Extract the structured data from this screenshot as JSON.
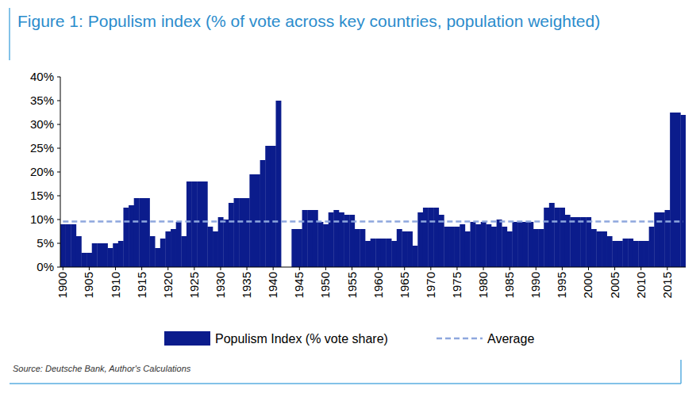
{
  "chart_data": {
    "type": "bar",
    "title": "Figure 1: Populism index (% of vote across key countries, population weighted)",
    "source": "Source: Deutsche Bank, Author's Calculations",
    "categories": [
      "1900",
      null,
      null,
      null,
      null,
      "1905",
      null,
      null,
      null,
      null,
      "1910",
      null,
      null,
      null,
      null,
      "1915",
      null,
      null,
      null,
      null,
      "1920",
      null,
      null,
      null,
      null,
      "1925",
      null,
      null,
      null,
      null,
      "1930",
      null,
      null,
      null,
      null,
      "1935",
      null,
      null,
      null,
      null,
      "1940",
      null,
      null,
      null,
      null,
      "1945",
      null,
      null,
      null,
      null,
      "1950",
      null,
      null,
      null,
      null,
      "1955",
      null,
      null,
      null,
      null,
      "1960",
      null,
      null,
      null,
      null,
      "1965",
      null,
      null,
      null,
      null,
      "1970",
      null,
      null,
      null,
      null,
      "1975",
      null,
      null,
      null,
      null,
      "1980",
      null,
      null,
      null,
      null,
      "1985",
      null,
      null,
      null,
      null,
      "1990",
      null,
      null,
      null,
      null,
      "1995",
      null,
      null,
      null,
      null,
      "2000",
      null,
      null,
      null,
      null,
      "2005",
      null,
      null,
      null,
      null,
      "2010",
      null,
      null,
      null,
      null,
      "2015",
      null,
      null,
      null
    ],
    "series": [
      {
        "name": "Populism Index (% vote share)",
        "color": "#0b1c8c",
        "type": "bar",
        "values": [
          9,
          9,
          9,
          6.5,
          3,
          3,
          5,
          5,
          5,
          4,
          5,
          5.5,
          12.5,
          13,
          14.5,
          14.5,
          14.5,
          6.5,
          4,
          6,
          7.5,
          8,
          9.5,
          6.5,
          18,
          18,
          18,
          18,
          8.5,
          7.5,
          10.5,
          10,
          13.5,
          14.5,
          14.5,
          14.5,
          19.5,
          19.5,
          22.5,
          25.5,
          25.5,
          35,
          null,
          null,
          8,
          8,
          12,
          12,
          12,
          9.5,
          9,
          11.5,
          12,
          11.5,
          11,
          11,
          8,
          8,
          5.5,
          6,
          6,
          6,
          6,
          5.5,
          8,
          7.5,
          7.5,
          4.5,
          11.5,
          12.5,
          12.5,
          12.5,
          11,
          8.5,
          8.5,
          8.5,
          9,
          7.5,
          9.5,
          9,
          9.5,
          9,
          8.5,
          10,
          8.5,
          7.5,
          9.5,
          9.5,
          9.5,
          9.5,
          8,
          8,
          12.5,
          13.5,
          12.5,
          12.5,
          11,
          10.5,
          10.5,
          10.5,
          10.5,
          8,
          7.5,
          7.5,
          6.5,
          5.5,
          5.5,
          6,
          6,
          5.5,
          5.5,
          5.5,
          8.5,
          11.5,
          11.5,
          12,
          32.5,
          32.5,
          32
        ]
      },
      {
        "name": "Average",
        "color": "#8ea7dd",
        "type": "line",
        "line_style": "dashed",
        "values": [
          9.6,
          9.6,
          9.6,
          9.6,
          9.6,
          9.6,
          9.6,
          9.6,
          9.6,
          9.6,
          9.6,
          9.6,
          9.6,
          9.6,
          9.6,
          9.6,
          9.6,
          9.6,
          9.6,
          9.6,
          9.6,
          9.6,
          9.6,
          9.6,
          9.6,
          9.6,
          9.6,
          9.6,
          9.6,
          9.6,
          9.6,
          9.6,
          9.6,
          9.6,
          9.6,
          9.6,
          9.6,
          9.6,
          9.6,
          9.6,
          9.6,
          9.6,
          9.6,
          9.6,
          9.6,
          9.6,
          9.6,
          9.6,
          9.6,
          9.6,
          9.6,
          9.6,
          9.6,
          9.6,
          9.6,
          9.6,
          9.6,
          9.6,
          9.6,
          9.6,
          9.6,
          9.6,
          9.6,
          9.6,
          9.6,
          9.6,
          9.6,
          9.6,
          9.6,
          9.6,
          9.6,
          9.6,
          9.6,
          9.6,
          9.6,
          9.6,
          9.6,
          9.6,
          9.6,
          9.6,
          9.6,
          9.6,
          9.6,
          9.6,
          9.6,
          9.6,
          9.6,
          9.6,
          9.6,
          9.6,
          9.6,
          9.6,
          9.6,
          9.6,
          9.6,
          9.6,
          9.6,
          9.6,
          9.6,
          9.6,
          9.6,
          9.6,
          9.6,
          9.6,
          9.6,
          9.6,
          9.6,
          9.6,
          9.6,
          9.6,
          9.6,
          9.6,
          9.6,
          9.6,
          9.6,
          9.6,
          9.6,
          9.6,
          9.6
        ]
      }
    ],
    "ylim": [
      0,
      40
    ],
    "yticks": [
      {
        "value": 0,
        "label": "0%"
      },
      {
        "value": 5,
        "label": "5%"
      },
      {
        "value": 10,
        "label": "10%"
      },
      {
        "value": 15,
        "label": "15%"
      },
      {
        "value": 20,
        "label": "20%"
      },
      {
        "value": 25,
        "label": "25%"
      },
      {
        "value": 30,
        "label": "30%"
      },
      {
        "value": 35,
        "label": "35%"
      },
      {
        "value": 40,
        "label": "40%"
      }
    ],
    "grid": false,
    "legend": "bottom"
  }
}
